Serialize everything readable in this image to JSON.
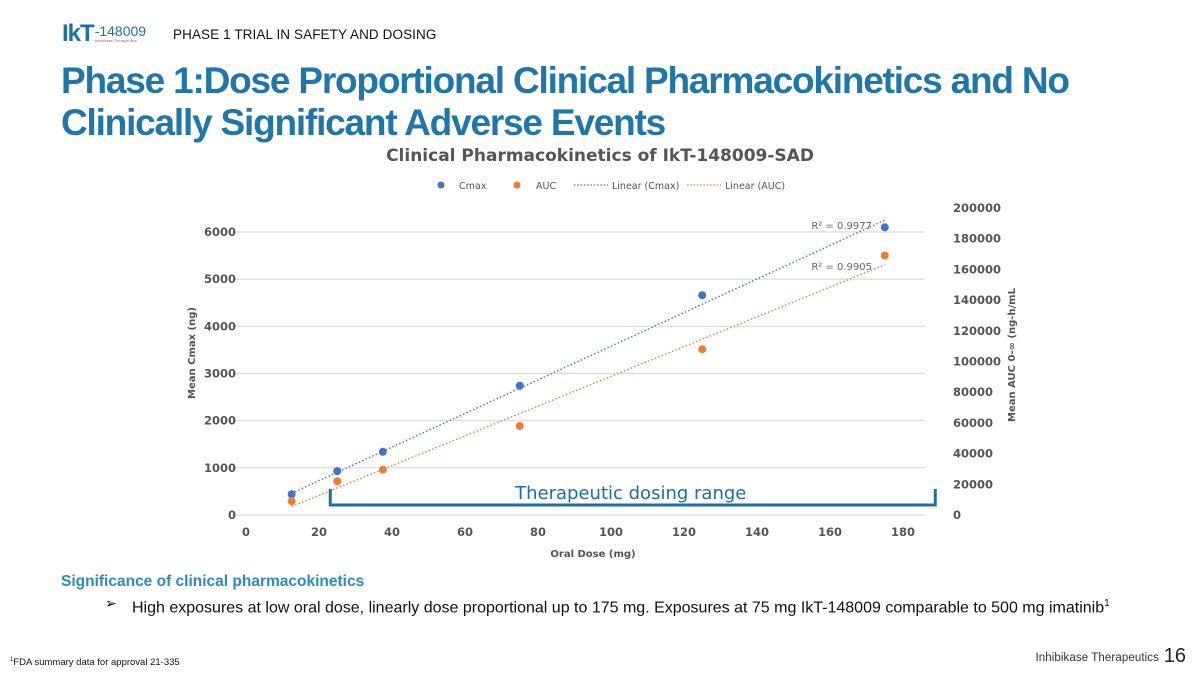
{
  "header": {
    "logo_text": "IkT",
    "logo_number": "-148009",
    "logo_subtext": "Inhibikase Therapeutics",
    "section_label": "PHASE 1 TRIAL IN SAFETY AND DOSING",
    "title": "Phase 1:Dose Proportional Clinical Pharmacokinetics and No Clinically Significant Adverse Events"
  },
  "colors": {
    "title_blue": "#1f76a8",
    "cmax": "#4472c4",
    "auc": "#ed7d31",
    "bracket": "#1b6ea6",
    "heading_blue": "#2b8bc2"
  },
  "chart_data": {
    "type": "scatter",
    "title": "Clinical Pharmacokinetics of IkT-148009-SAD",
    "xlabel": "Oral Dose (mg)",
    "ylabel": "Mean Cmax (ng)",
    "y2label": "Mean AUC 0-∞ (ng-h/mL",
    "xlim": [
      0,
      180
    ],
    "ylim": [
      0,
      6000
    ],
    "y2lim": [
      0,
      200000
    ],
    "xticks": [
      0,
      20,
      40,
      60,
      80,
      100,
      120,
      140,
      160,
      180
    ],
    "yticks": [
      0,
      1000,
      2000,
      3000,
      4000,
      5000,
      6000
    ],
    "y2ticks": [
      0,
      20000,
      40000,
      60000,
      80000,
      100000,
      120000,
      140000,
      160000,
      180000,
      200000
    ],
    "grid": true,
    "legend_position": "top",
    "legend": [
      "Cmax",
      "AUC",
      "Linear (Cmax)",
      "Linear (AUC)"
    ],
    "x": [
      12.5,
      25,
      37.5,
      75,
      125,
      175
    ],
    "series": [
      {
        "name": "Cmax",
        "axis": "left",
        "values": [
          440,
          930,
          1340,
          2740,
          4660,
          6100
        ],
        "trendline": {
          "name": "Linear (Cmax)",
          "type": "linear",
          "r2_label": "R² = 0.9977",
          "start": [
            12.5,
            460
          ],
          "end": [
            175,
            6250
          ]
        }
      },
      {
        "name": "AUC",
        "axis": "right",
        "values": [
          9000,
          22000,
          29500,
          58000,
          108000,
          169000
        ],
        "trendline": {
          "name": "Linear (AUC)",
          "type": "linear",
          "r2_label": "R² = 0.9905",
          "start": [
            12.5,
            5500
          ],
          "end": [
            175,
            163000
          ]
        }
      }
    ],
    "annotations": [
      {
        "text": "Therapeutic dosing range",
        "x_range": [
          25,
          185
        ]
      }
    ]
  },
  "significance": {
    "heading": "Significance of clinical pharmacokinetics",
    "bullet_glyph": "➢",
    "bullet_text": "High exposures at low oral dose, linearly dose proportional up to 175 mg.  Exposures at 75 mg IkT-148009 comparable to 500 mg imatinib",
    "bullet_sup": "1"
  },
  "footer": {
    "footnote_sup": "1",
    "footnote": "FDA summary data for approval 21-335",
    "company": "Inhibikase Therapeutics",
    "page_number": "16"
  }
}
